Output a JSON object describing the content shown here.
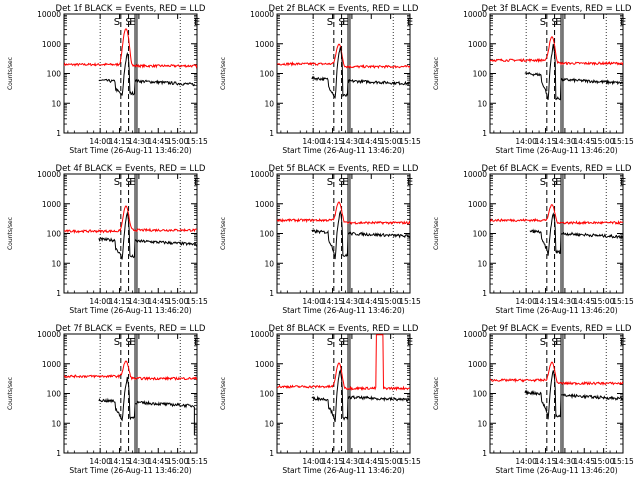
{
  "chart_data": {
    "type": "line",
    "layout": "3x3 grid",
    "y_scale": "log",
    "ylim": [
      1,
      10000
    ],
    "y_ticks": [
      "1",
      "10",
      "100",
      "1000",
      "10000"
    ],
    "x_ticks": [
      "14:00",
      "14:15",
      "14:30",
      "14:45",
      "15:00",
      "15:15"
    ],
    "x_range_minutes": [
      -28,
      75
    ],
    "x_tick_minutes": [
      0,
      15,
      30,
      45,
      60,
      75
    ],
    "ylabel": "Counts/sec",
    "xlabel": "Start Time (26-Aug-11 13:46:20)",
    "colors": {
      "events": "#000000",
      "lld": "#ff0000"
    },
    "vertical_markers": {
      "dashed_minutes": [
        16,
        22
      ],
      "solid_minutes": [
        27,
        28.5
      ],
      "dotted_minutes": [
        0,
        62
      ]
    },
    "marker_letters": [
      {
        "text": "S",
        "minute": 13,
        "style": "dashed"
      },
      {
        "text": "E",
        "minute": 25,
        "style": "dashed"
      },
      {
        "text": "S",
        "minute": 22,
        "style": "solid"
      },
      {
        "text": "E",
        "minute": 75,
        "style": "solid"
      }
    ],
    "panels": [
      {
        "title": "Det 1f BLACK = Events, RED = LLD",
        "events": {
          "start": -1,
          "end": 73,
          "base": 60,
          "dip_min": 18,
          "peak": 500,
          "tail": 45,
          "drop": false
        },
        "lld": {
          "start": -28,
          "end": 103,
          "base": 200,
          "peak": 3000,
          "tail": 180,
          "spike": null
        }
      },
      {
        "title": "Det 2f BLACK = Events, RED = LLD",
        "events": {
          "start": -1,
          "end": 88,
          "base": 70,
          "dip_min": 15,
          "peak": 800,
          "tail": 45,
          "drop": false
        },
        "lld": {
          "start": -28,
          "end": 103,
          "base": 210,
          "peak": 800,
          "tail": 170,
          "spike": null
        }
      },
      {
        "title": "Det 3f BLACK = Events, RED = LLD",
        "events": {
          "start": -1,
          "end": 75,
          "base": 100,
          "dip_min": 12,
          "peak": 900,
          "tail": 50,
          "drop": false
        },
        "lld": {
          "start": -28,
          "end": 103,
          "base": 280,
          "peak": 1500,
          "tail": 220,
          "spike": null
        }
      },
      {
        "title": "Det 4f BLACK = Events, RED = LLD",
        "events": {
          "start": -1,
          "end": 75,
          "base": 65,
          "dip_min": 14,
          "peak": 500,
          "tail": 45,
          "drop": true
        },
        "lld": {
          "start": -28,
          "end": 103,
          "base": 120,
          "peak": 700,
          "tail": 130,
          "spike": null
        }
      },
      {
        "title": "Det 5f BLACK = Events, RED = LLD",
        "events": {
          "start": -1,
          "end": 88,
          "base": 120,
          "dip_min": 15,
          "peak": 600,
          "tail": 80,
          "drop": true
        },
        "lld": {
          "start": -28,
          "end": 103,
          "base": 280,
          "peak": 900,
          "tail": 230,
          "spike": null
        }
      },
      {
        "title": "Det 6f BLACK = Events, RED = LLD",
        "events": {
          "start": 3,
          "end": 75,
          "base": 120,
          "dip_min": 20,
          "peak": 500,
          "tail": 80,
          "drop": true
        },
        "lld": {
          "start": -28,
          "end": 103,
          "base": 280,
          "peak": 700,
          "tail": 230,
          "spike": null
        }
      },
      {
        "title": "Det 7f BLACK = Events, RED = LLD",
        "events": {
          "start": -1,
          "end": 73,
          "base": 60,
          "dip_min": 13,
          "peak": 350,
          "tail": 40,
          "drop": true
        },
        "lld": {
          "start": -28,
          "end": 103,
          "base": 380,
          "peak": 900,
          "tail": 320,
          "spike": null
        }
      },
      {
        "title": "Det 8f BLACK = Events, RED = LLD",
        "events": {
          "start": -1,
          "end": 88,
          "base": 70,
          "dip_min": 12,
          "peak": 650,
          "tail": 60,
          "drop": true
        },
        "lld": {
          "start": -28,
          "end": 103,
          "base": 170,
          "peak": 900,
          "tail": 150,
          "spike": [
            49,
            54
          ]
        }
      },
      {
        "title": "Det 9f BLACK = Events, RED = LLD",
        "events": {
          "start": -1,
          "end": 75,
          "base": 110,
          "dip_min": 15,
          "peak": 600,
          "tail": 70,
          "drop": true
        },
        "lld": {
          "start": -28,
          "end": 103,
          "base": 280,
          "peak": 900,
          "tail": 220,
          "spike": null
        }
      }
    ]
  }
}
